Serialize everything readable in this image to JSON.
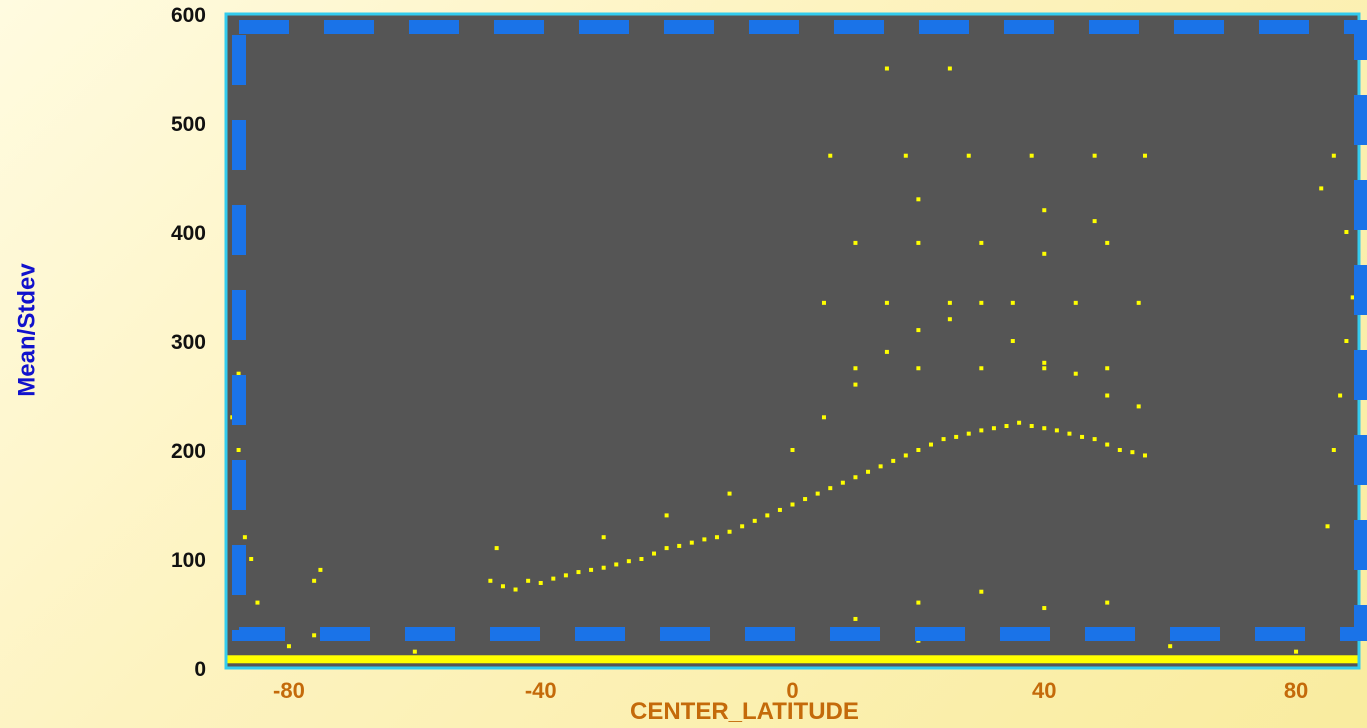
{
  "chart_data": {
    "type": "scatter",
    "title": "",
    "xlabel": "CENTER_LATITUDE",
    "ylabel": "Mean/Stdev",
    "xlim": [
      -90,
      90
    ],
    "ylim": [
      0,
      600
    ],
    "xticks": [
      "-80",
      "-40",
      "0",
      "40",
      "80"
    ],
    "xtick_values": [
      -80,
      -40,
      0,
      40,
      80
    ],
    "yticks": [
      "0",
      "100",
      "200",
      "300",
      "400",
      "500",
      "600"
    ],
    "ytick_values": [
      0,
      100,
      200,
      300,
      400,
      500,
      600
    ],
    "grid": false,
    "series": [
      {
        "values_description_only": false,
        "points": [
          [
            -89,
            230
          ],
          [
            -88,
            200
          ],
          [
            -88,
            150
          ],
          [
            -87,
            120
          ],
          [
            -86,
            100
          ],
          [
            -85,
            60
          ],
          [
            -84,
            30
          ],
          [
            -88,
            270
          ],
          [
            -80,
            20
          ],
          [
            -76,
            30
          ],
          [
            -76,
            80
          ],
          [
            -75,
            90
          ],
          [
            -48,
            80
          ],
          [
            -46,
            75
          ],
          [
            -44,
            72
          ],
          [
            -42,
            80
          ],
          [
            -40,
            78
          ],
          [
            -38,
            82
          ],
          [
            -36,
            85
          ],
          [
            -34,
            88
          ],
          [
            -32,
            90
          ],
          [
            -30,
            92
          ],
          [
            -28,
            95
          ],
          [
            -26,
            98
          ],
          [
            -24,
            100
          ],
          [
            -22,
            105
          ],
          [
            -20,
            110
          ],
          [
            -18,
            112
          ],
          [
            -16,
            115
          ],
          [
            -14,
            118
          ],
          [
            -12,
            120
          ],
          [
            -10,
            125
          ],
          [
            -8,
            130
          ],
          [
            -6,
            135
          ],
          [
            -4,
            140
          ],
          [
            -2,
            145
          ],
          [
            0,
            150
          ],
          [
            2,
            155
          ],
          [
            4,
            160
          ],
          [
            6,
            165
          ],
          [
            8,
            170
          ],
          [
            10,
            175
          ],
          [
            12,
            180
          ],
          [
            14,
            185
          ],
          [
            16,
            190
          ],
          [
            18,
            195
          ],
          [
            20,
            200
          ],
          [
            22,
            205
          ],
          [
            24,
            210
          ],
          [
            26,
            212
          ],
          [
            28,
            215
          ],
          [
            30,
            218
          ],
          [
            32,
            220
          ],
          [
            34,
            222
          ],
          [
            36,
            225
          ],
          [
            38,
            222
          ],
          [
            40,
            220
          ],
          [
            42,
            218
          ],
          [
            44,
            215
          ],
          [
            46,
            212
          ],
          [
            48,
            210
          ],
          [
            50,
            205
          ],
          [
            52,
            200
          ],
          [
            54,
            198
          ],
          [
            56,
            195
          ],
          [
            -47,
            110
          ],
          [
            -30,
            120
          ],
          [
            -20,
            140
          ],
          [
            -10,
            160
          ],
          [
            0,
            200
          ],
          [
            5,
            230
          ],
          [
            10,
            260
          ],
          [
            15,
            290
          ],
          [
            20,
            310
          ],
          [
            25,
            320
          ],
          [
            30,
            335
          ],
          [
            35,
            300
          ],
          [
            40,
            280
          ],
          [
            45,
            270
          ],
          [
            50,
            250
          ],
          [
            55,
            240
          ],
          [
            0,
            35
          ],
          [
            10,
            45
          ],
          [
            20,
            60
          ],
          [
            30,
            70
          ],
          [
            40,
            55
          ],
          [
            50,
            60
          ],
          [
            -60,
            15
          ],
          [
            -20,
            30
          ],
          [
            20,
            25
          ],
          [
            60,
            20
          ],
          [
            80,
            15
          ],
          [
            85,
            130
          ],
          [
            86,
            200
          ],
          [
            87,
            250
          ],
          [
            88,
            300
          ],
          [
            89,
            340
          ],
          [
            86,
            470
          ],
          [
            88,
            400
          ],
          [
            84,
            440
          ],
          [
            15,
            550
          ],
          [
            25,
            550
          ],
          [
            6,
            470
          ],
          [
            18,
            470
          ],
          [
            28,
            470
          ],
          [
            38,
            470
          ],
          [
            48,
            470
          ],
          [
            56,
            470
          ],
          [
            10,
            390
          ],
          [
            20,
            390
          ],
          [
            30,
            390
          ],
          [
            40,
            380
          ],
          [
            50,
            390
          ],
          [
            20,
            430
          ],
          [
            40,
            420
          ],
          [
            48,
            410
          ],
          [
            5,
            335
          ],
          [
            15,
            335
          ],
          [
            25,
            335
          ],
          [
            35,
            335
          ],
          [
            45,
            335
          ],
          [
            55,
            335
          ],
          [
            10,
            275
          ],
          [
            20,
            275
          ],
          [
            30,
            275
          ],
          [
            40,
            275
          ],
          [
            50,
            275
          ]
        ]
      }
    ],
    "band": {
      "y": 8,
      "from_x": -90,
      "to_x": 90,
      "color": "#ffff00"
    },
    "colors": {
      "plot_bg": "#555555",
      "points": "#ffff00",
      "frame": "#33ccee",
      "dashed_box": "#1a73e8"
    }
  }
}
